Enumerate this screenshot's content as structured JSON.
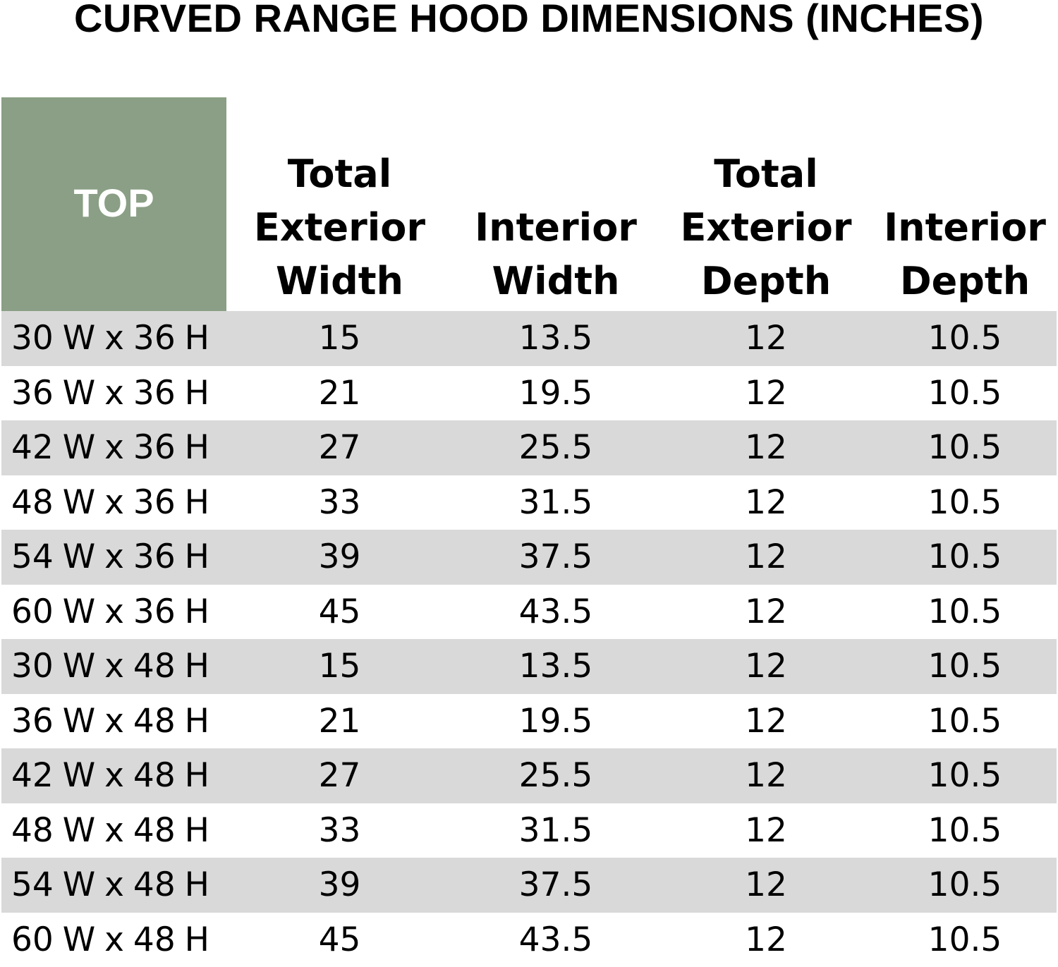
{
  "title": "CURVED RANGE HOOD DIMENSIONS (INCHES)",
  "header": {
    "corner_label": "TOP",
    "columns": [
      [
        "Total",
        "Exterior",
        "Width"
      ],
      [
        "",
        "Interior",
        "Width"
      ],
      [
        "Total",
        "Exterior",
        "Depth"
      ],
      [
        "",
        "Interior",
        "Depth"
      ]
    ]
  },
  "rows": [
    [
      "30 W x 36 H",
      "15",
      "13.5",
      "12",
      "10.5"
    ],
    [
      "36 W x 36 H",
      "21",
      "19.5",
      "12",
      "10.5"
    ],
    [
      "42 W x 36 H",
      "27",
      "25.5",
      "12",
      "10.5"
    ],
    [
      "48 W x 36 H",
      "33",
      "31.5",
      "12",
      "10.5"
    ],
    [
      "54 W x 36 H",
      "39",
      "37.5",
      "12",
      "10.5"
    ],
    [
      "60 W x 36 H",
      "45",
      "43.5",
      "12",
      "10.5"
    ],
    [
      "30 W x 48 H",
      "15",
      "13.5",
      "12",
      "10.5"
    ],
    [
      "36 W x 48 H",
      "21",
      "19.5",
      "12",
      "10.5"
    ],
    [
      "42 W x 48 H",
      "27",
      "25.5",
      "12",
      "10.5"
    ],
    [
      "48 W x 48 H",
      "33",
      "31.5",
      "12",
      "10.5"
    ],
    [
      "54 W x 48 H",
      "39",
      "37.5",
      "12",
      "10.5"
    ],
    [
      "60 W x 48 H",
      "45",
      "43.5",
      "12",
      "10.5"
    ]
  ],
  "colors": {
    "header_fill": "#8a9f85",
    "header_text": "#ffffff",
    "row_shade": "#d9d9d9",
    "text": "#000000"
  }
}
